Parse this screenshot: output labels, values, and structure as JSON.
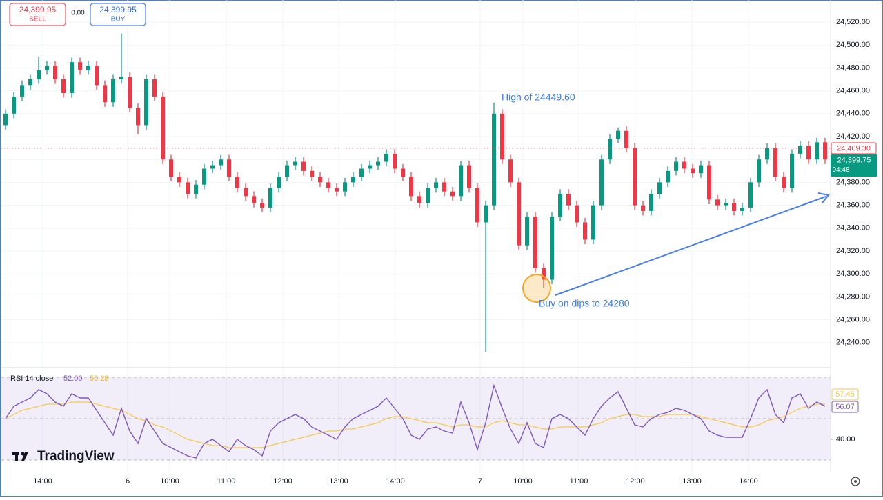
{
  "chart_data": [
    {
      "type": "candlestick",
      "up_color": "#089981",
      "down_color": "#f23645",
      "xlim": [
        -0.5,
        99.5
      ],
      "ylim": [
        24220,
        24539.3
      ],
      "xticks": [
        {
          "value": 4.5,
          "label": "14:00"
        },
        {
          "value": 14.75,
          "label": "6"
        },
        {
          "value": 19.83,
          "label": "10:00"
        },
        {
          "value": 26.67,
          "label": "11:00"
        },
        {
          "value": 33.5,
          "label": "12:00"
        },
        {
          "value": 40.25,
          "label": "13:00"
        },
        {
          "value": 47.08,
          "label": "14:00"
        },
        {
          "value": 57.33,
          "label": "7"
        },
        {
          "value": 62.5,
          "label": "10:00"
        },
        {
          "value": 69.25,
          "label": "11:00"
        },
        {
          "value": 76.08,
          "label": "12:00"
        },
        {
          "value": 82.92,
          "label": "13:00"
        },
        {
          "value": 89.75,
          "label": "14:00"
        }
      ],
      "yticks": [
        {
          "value": 24240,
          "label": "24,240.00"
        },
        {
          "value": 24260,
          "label": "24,260.00"
        },
        {
          "value": 24280,
          "label": "24,280.00"
        },
        {
          "value": 24300,
          "label": "24,300.00"
        },
        {
          "value": 24320,
          "label": "24,320.00"
        },
        {
          "value": 24340,
          "label": "24,340.00"
        },
        {
          "value": 24360,
          "label": "24,360.00"
        },
        {
          "value": 24380,
          "label": "24,380.00"
        },
        {
          "value": 24400,
          "label": "24,400.00"
        },
        {
          "value": 24420,
          "label": "24,420.00"
        },
        {
          "value": 24440,
          "label": "24,440.00"
        },
        {
          "value": 24460,
          "label": "24,460.00"
        },
        {
          "value": 24480,
          "label": "24,480.00"
        },
        {
          "value": 24500,
          "label": "24,500.00"
        },
        {
          "value": 24520,
          "label": "24,520.00"
        }
      ],
      "grid": true,
      "open": [
        24430,
        24440,
        24455,
        24465,
        24470,
        24478,
        24482,
        24470,
        24458,
        24485,
        24478,
        24482,
        24465,
        24450,
        24470,
        24472,
        24445,
        24430,
        24470,
        24455,
        24400,
        24385,
        24380,
        24370,
        24378,
        24392,
        24395,
        24400,
        24385,
        24375,
        24368,
        24362,
        24358,
        24375,
        24385,
        24395,
        24398,
        24390,
        24385,
        24380,
        24375,
        24372,
        24380,
        24385,
        24392,
        24395,
        24398,
        24405,
        24392,
        24385,
        24368,
        24362,
        24375,
        24380,
        24372,
        24368,
        24395,
        24375,
        24345,
        24360,
        24440,
        24400,
        24380,
        24325,
        24350,
        24305,
        24295,
        24350,
        24370,
        24360,
        24345,
        24330,
        24360,
        24400,
        24418,
        24425,
        24410,
        24360,
        24355,
        24370,
        24380,
        24390,
        24398,
        24392,
        24388,
        24395,
        24365,
        24360,
        24362,
        24355,
        24358,
        24380,
        24400,
        24410,
        24385,
        24375,
        24405,
        24412,
        24400,
        24415
      ],
      "high": [
        24444,
        24459,
        24469,
        24474,
        24490,
        24486,
        24486,
        24474,
        24489,
        24489,
        24486,
        24486,
        24469,
        24474,
        24510,
        24476,
        24449,
        24474,
        24474,
        24459,
        24404,
        24389,
        24384,
        24382,
        24396,
        24399,
        24404,
        24404,
        24389,
        24379,
        24372,
        24366,
        24379,
        24389,
        24399,
        24402,
        24402,
        24394,
        24389,
        24384,
        24379,
        24384,
        24389,
        24396,
        24399,
        24402,
        24409,
        24409,
        24396,
        24389,
        24372,
        24379,
        24384,
        24384,
        24376,
        24399,
        24399,
        24379,
        24364,
        24449.6,
        24444,
        24404,
        24384,
        24354,
        24354,
        24309,
        24354,
        24374,
        24374,
        24364,
        24349,
        24364,
        24404,
        24422,
        24428,
        24429,
        24414,
        24364,
        24374,
        24384,
        24394,
        24402,
        24402,
        24396,
        24399,
        24399,
        24369,
        24366,
        24366,
        24362,
        24384,
        24404,
        24414,
        24414,
        24389,
        24409,
        24416,
        24416,
        24419,
        24419
      ],
      "low": [
        24426,
        24436,
        24451,
        24461,
        24466,
        24474,
        24466,
        24454,
        24454,
        24474,
        24474,
        24461,
        24446,
        24446,
        24466,
        24441,
        24422,
        24426,
        24451,
        24396,
        24381,
        24376,
        24366,
        24366,
        24374,
        24388,
        24391,
        24381,
        24371,
        24364,
        24358,
        24354,
        24354,
        24371,
        24381,
        24391,
        24386,
        24381,
        24376,
        24371,
        24368,
        24368,
        24376,
        24381,
        24388,
        24391,
        24394,
        24388,
        24381,
        24364,
        24358,
        24358,
        24371,
        24368,
        24364,
        24364,
        24371,
        24341,
        24232,
        24356,
        24396,
        24376,
        24321,
        24321,
        24301,
        24288,
        24291,
        24346,
        24356,
        24341,
        24326,
        24326,
        24356,
        24396,
        24414,
        24406,
        24356,
        24351,
        24351,
        24366,
        24376,
        24386,
        24388,
        24384,
        24384,
        24361,
        24356,
        24356,
        24351,
        24351,
        24354,
        24376,
        24396,
        24381,
        24371,
        24371,
        24401,
        24396,
        24396,
        24396
      ],
      "close": [
        24440,
        24455,
        24465,
        24470,
        24478,
        24482,
        24470,
        24458,
        24485,
        24478,
        24482,
        24465,
        24450,
        24470,
        24472,
        24445,
        24430,
        24470,
        24455,
        24400,
        24385,
        24380,
        24370,
        24378,
        24392,
        24395,
        24400,
        24385,
        24375,
        24368,
        24362,
        24358,
        24375,
        24385,
        24395,
        24398,
        24390,
        24385,
        24380,
        24375,
        24372,
        24380,
        24385,
        24392,
        24395,
        24398,
        24405,
        24392,
        24385,
        24368,
        24362,
        24375,
        24380,
        24372,
        24368,
        24395,
        24375,
        24345,
        24360,
        24440,
        24400,
        24380,
        24325,
        24350,
        24305,
        24295,
        24350,
        24370,
        24360,
        24345,
        24330,
        24360,
        24400,
        24418,
        24425,
        24410,
        24360,
        24355,
        24370,
        24380,
        24390,
        24398,
        24392,
        24388,
        24395,
        24365,
        24360,
        24362,
        24355,
        24358,
        24380,
        24400,
        24410,
        24385,
        24375,
        24405,
        24412,
        24400,
        24415,
        24400
      ],
      "annotations": [
        "High of 24449.60",
        "Buy on dips to 24280"
      ],
      "price_labels": {
        "bid": "24,409.30",
        "last": "24,399.75",
        "countdown": "04:48"
      }
    },
    {
      "type": "line",
      "legend_label": "RSI 14 close",
      "xlim": [
        -0.5,
        99.5
      ],
      "ylim": [
        24,
        74
      ],
      "yticks": [
        {
          "value": 40,
          "label": "40.00"
        }
      ],
      "levels": [
        70,
        50,
        30
      ],
      "band_color": "#7e57c2",
      "series": [
        {
          "color": "#7e57c2",
          "legend_value": "52.00",
          "last_label": "56.07",
          "values": [
            50,
            56,
            58,
            60,
            64,
            62,
            58,
            56,
            62,
            60,
            60,
            54,
            48,
            42,
            55,
            44,
            38,
            50,
            44,
            38,
            36,
            34,
            32,
            31,
            38,
            40,
            37,
            34,
            40,
            37,
            35,
            32,
            44,
            48,
            50,
            52,
            50,
            46,
            44,
            42,
            40,
            46,
            50,
            52,
            54,
            56,
            60,
            55,
            50,
            42,
            40,
            45,
            46,
            44,
            43,
            58,
            48,
            35,
            48,
            66,
            55,
            45,
            38,
            48,
            38,
            36,
            50,
            52,
            50,
            46,
            42,
            50,
            56,
            60,
            63,
            55,
            47,
            46,
            50,
            52,
            53,
            55,
            54,
            52,
            50,
            44,
            42,
            41,
            41,
            41,
            50,
            60,
            64,
            52,
            48,
            60,
            62,
            55,
            58,
            56
          ]
        },
        {
          "color": "#f2c94c",
          "legend_value": "50.28",
          "last_label": "57.45",
          "values": [
            50,
            52,
            54,
            55,
            56,
            57,
            57,
            57,
            58,
            58,
            58,
            57,
            56,
            55,
            54,
            52,
            50,
            49,
            47,
            46,
            44,
            42,
            40,
            39,
            38,
            37,
            37,
            36,
            36,
            36,
            36,
            36,
            37,
            38,
            39,
            40,
            41,
            42,
            43,
            44,
            44,
            45,
            45,
            46,
            47,
            48,
            50,
            51,
            51,
            50,
            49,
            48,
            48,
            47,
            46,
            47,
            47,
            46,
            46,
            48,
            49,
            48,
            47,
            47,
            46,
            45,
            45,
            46,
            46,
            46,
            46,
            47,
            48,
            50,
            51,
            52,
            52,
            51,
            51,
            51,
            52,
            52,
            52,
            52,
            51,
            50,
            49,
            48,
            47,
            46,
            46,
            47,
            49,
            50,
            51,
            53,
            55,
            56,
            57,
            57
          ]
        }
      ]
    }
  ],
  "order_panel": {
    "sell_price": "24,399.95",
    "sell": "SELL",
    "spread": "0.00",
    "buy_price": "24,399.95",
    "buy": "BUY"
  },
  "brand": "TradingView"
}
